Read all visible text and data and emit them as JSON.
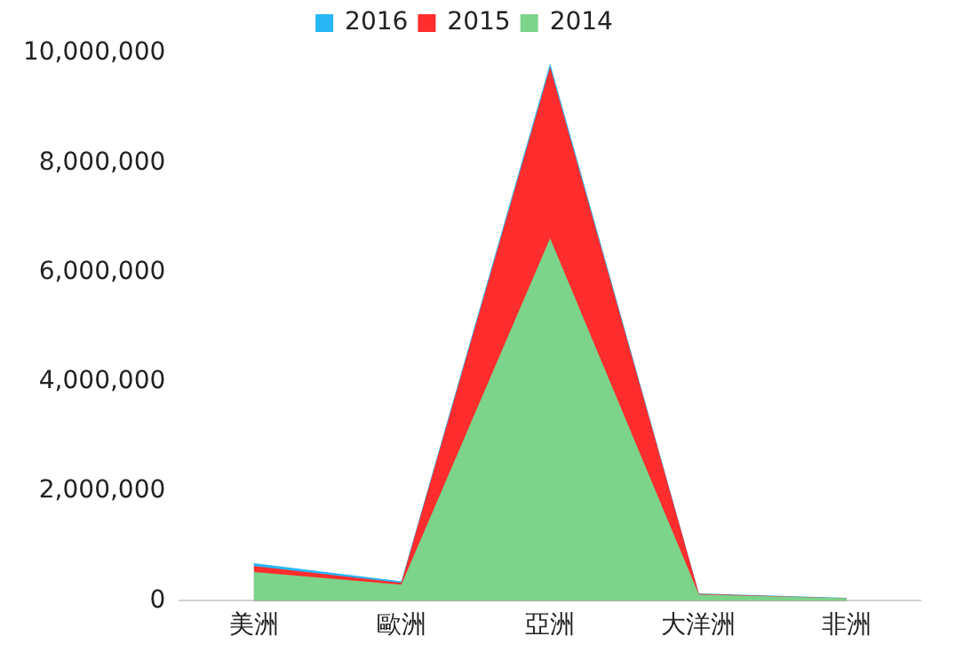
{
  "chart_data": {
    "type": "area",
    "categories": [
      "美洲",
      "歐洲",
      "亞洲",
      "大洋洲",
      "非洲"
    ],
    "series": [
      {
        "name": "2016",
        "color": "#29b6f6",
        "values": [
          670000,
          340000,
          9760000,
          120000,
          40000
        ]
      },
      {
        "name": "2015",
        "color": "#ff2d2d",
        "values": [
          620000,
          310000,
          9690000,
          110000,
          30000
        ]
      },
      {
        "name": "2014",
        "color": "#7cd38a",
        "values": [
          510000,
          280000,
          6580000,
          100000,
          30000
        ]
      }
    ],
    "ylim": [
      0,
      10000000
    ],
    "yticks": [
      0,
      {
        "value": 2000000,
        "label": "2,000,000"
      },
      {
        "value": 4000000,
        "label": "4,000,000"
      },
      {
        "value": 6000000,
        "label": "6,000,000"
      },
      {
        "value": 8000000,
        "label": "8,000,000"
      },
      {
        "value": 10000000,
        "label": "10,000,000"
      }
    ],
    "grid": false,
    "legend": "top"
  }
}
